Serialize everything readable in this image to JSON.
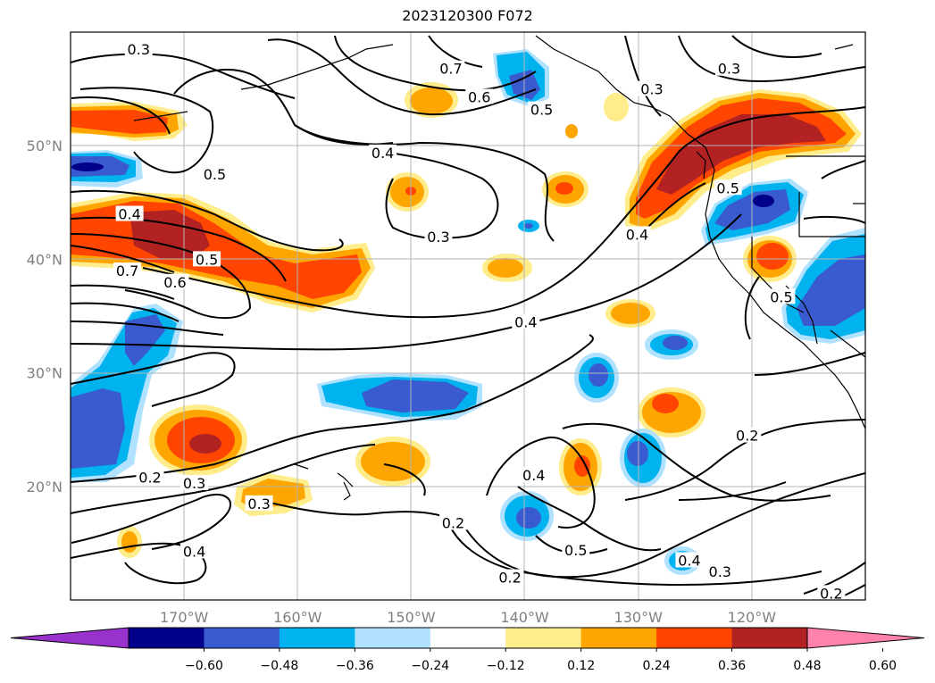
{
  "title": "2023120300 F072",
  "map": {
    "lon_range": [
      -180,
      -110
    ],
    "lat_range": [
      10,
      60
    ],
    "grid": true,
    "lon_ticks": [
      {
        "value": -170,
        "label": "170°W"
      },
      {
        "value": -160,
        "label": "160°W"
      },
      {
        "value": -150,
        "label": "150°W"
      },
      {
        "value": -140,
        "label": "140°W"
      },
      {
        "value": -130,
        "label": "130°W"
      },
      {
        "value": -120,
        "label": "120°W"
      }
    ],
    "lat_ticks": [
      {
        "value": 20,
        "label": "20°N"
      },
      {
        "value": 30,
        "label": "30°N"
      },
      {
        "value": 40,
        "label": "40°N"
      },
      {
        "value": 50,
        "label": "50°N"
      }
    ],
    "contour_labels": [
      {
        "text": "0.3",
        "lon": -174,
        "lat": 58.5
      },
      {
        "text": "0.7",
        "lon": -146.5,
        "lat": 56.8
      },
      {
        "text": "0.6",
        "lon": -144,
        "lat": 54.3
      },
      {
        "text": "0.5",
        "lon": -138.5,
        "lat": 53.2
      },
      {
        "text": "0.4",
        "lon": -152.5,
        "lat": 49.4
      },
      {
        "text": "0.5",
        "lon": -167.3,
        "lat": 47.5
      },
      {
        "text": "0.4",
        "lon": -174.8,
        "lat": 44
      },
      {
        "text": "0.5",
        "lon": -168,
        "lat": 40
      },
      {
        "text": "0.7",
        "lon": -175,
        "lat": 39
      },
      {
        "text": "0.6",
        "lon": -170.8,
        "lat": 38
      },
      {
        "text": "0.3",
        "lon": -147.6,
        "lat": 42
      },
      {
        "text": "0.4",
        "lon": -139.9,
        "lat": 34.5
      },
      {
        "text": "0.4",
        "lon": -130.1,
        "lat": 42.2
      },
      {
        "text": "0.3",
        "lon": -128.8,
        "lat": 55
      },
      {
        "text": "0.3",
        "lon": -122,
        "lat": 56.8
      },
      {
        "text": "0.5",
        "lon": -122.1,
        "lat": 46.3
      },
      {
        "text": "0.5",
        "lon": -117.4,
        "lat": 36.7
      },
      {
        "text": "0.2",
        "lon": -120.4,
        "lat": 24.5
      },
      {
        "text": "0.2",
        "lon": -173,
        "lat": 20.8
      },
      {
        "text": "0.3",
        "lon": -169.1,
        "lat": 20.3
      },
      {
        "text": "0.3",
        "lon": -163.4,
        "lat": 18.5
      },
      {
        "text": "0.4",
        "lon": -169.1,
        "lat": 14.3
      },
      {
        "text": "0.2",
        "lon": -146.3,
        "lat": 16.8
      },
      {
        "text": "0.4",
        "lon": -139.2,
        "lat": 21
      },
      {
        "text": "0.5",
        "lon": -135.5,
        "lat": 14.4
      },
      {
        "text": "0.2",
        "lon": -141.3,
        "lat": 12
      },
      {
        "text": "0.4",
        "lon": -125.5,
        "lat": 13.5
      },
      {
        "text": "0.3",
        "lon": -122.8,
        "lat": 12.5
      },
      {
        "text": "0.2",
        "lon": -113,
        "lat": 10.6
      }
    ]
  },
  "colorbar": {
    "extend": "both",
    "colors": [
      "#9932cc",
      "#00008b",
      "#3a5bd0",
      "#00b2ee",
      "#b0e2ff",
      "#ffffff",
      "#ffec8b",
      "#ffa500",
      "#ff4500",
      "#b22222",
      "#ff82ab"
    ],
    "tick_labels": [
      "−0.60",
      "−0.48",
      "−0.36",
      "−0.24",
      "−0.12",
      "0.12",
      "0.24",
      "0.36",
      "0.48",
      "0.60"
    ]
  }
}
